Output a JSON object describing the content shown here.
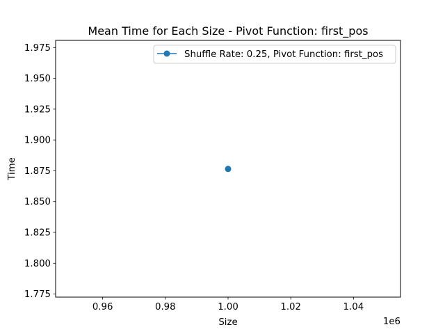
{
  "chart_data": {
    "type": "line",
    "title": "Mean Time for Each Size - Pivot Function: first_pos",
    "xlabel": "Size",
    "ylabel": "Time",
    "x_offset_label": "1e6",
    "xlim": [
      0.945,
      1.055
    ],
    "ylim": [
      1.7725,
      1.9808
    ],
    "xticks": [
      0.96,
      0.98,
      1.0,
      1.02,
      1.04
    ],
    "xtick_labels": [
      "0.96",
      "0.98",
      "1.00",
      "1.02",
      "1.04"
    ],
    "yticks": [
      1.775,
      1.8,
      1.825,
      1.85,
      1.875,
      1.9,
      1.925,
      1.95,
      1.975
    ],
    "ytick_labels": [
      "1.775",
      "1.800",
      "1.825",
      "1.850",
      "1.875",
      "1.900",
      "1.925",
      "1.950",
      "1.975"
    ],
    "grid": false,
    "legend_position": "top-right",
    "series": [
      {
        "name": "Shuffle Rate: 0.25, Pivot Function: first_pos",
        "color": "#1f77b4",
        "marker": "circle",
        "x": [
          1.0
        ],
        "y": [
          1.8765
        ]
      }
    ]
  }
}
